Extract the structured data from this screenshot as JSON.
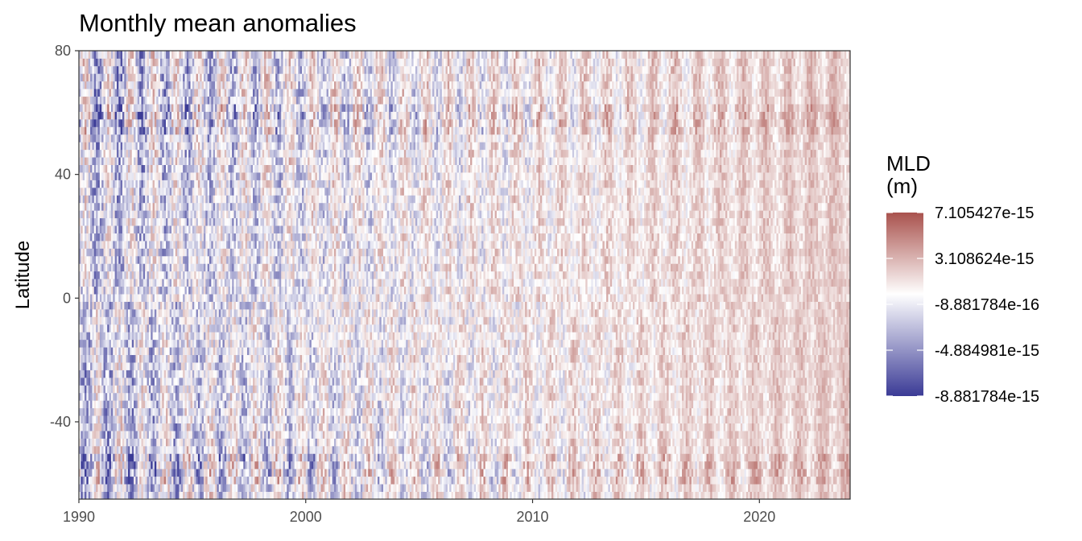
{
  "chart_data": {
    "type": "heatmap",
    "title": "Monthly mean anomalies",
    "xlabel": "",
    "ylabel": "Latitude",
    "xlim": [
      1990,
      2024
    ],
    "ylim": [
      -65,
      80
    ],
    "x_ticks": [
      1990,
      2000,
      2010,
      2020
    ],
    "y_ticks": [
      -40,
      0,
      40,
      80
    ],
    "x_tick_labels": [
      "1990",
      "2000",
      "2010",
      "2020"
    ],
    "y_tick_labels": [
      "-40",
      "0",
      "40",
      "80"
    ],
    "colorbar": {
      "title_lines": [
        "MLD",
        "(m)"
      ],
      "min": -8.881784e-15,
      "max": 7.105427e-15,
      "tick_values": [
        7.105427e-15,
        3.108624e-15,
        -8.881784e-16,
        -4.884981e-15,
        -8.881784e-15
      ],
      "tick_labels": [
        "7.105427e-15",
        "3.108624e-15",
        "-8.881784e-16",
        "-4.884981e-15",
        "-8.881784e-15"
      ],
      "colors": [
        "#3b3b96",
        "#ffffff",
        "#a9524d"
      ]
    },
    "grid": false,
    "legend_position": "right",
    "data_pattern": "monthly time steps 1990-2023 by latitude bands; alternating seasonal anomalies, stronger in early years and at high latitudes"
  }
}
